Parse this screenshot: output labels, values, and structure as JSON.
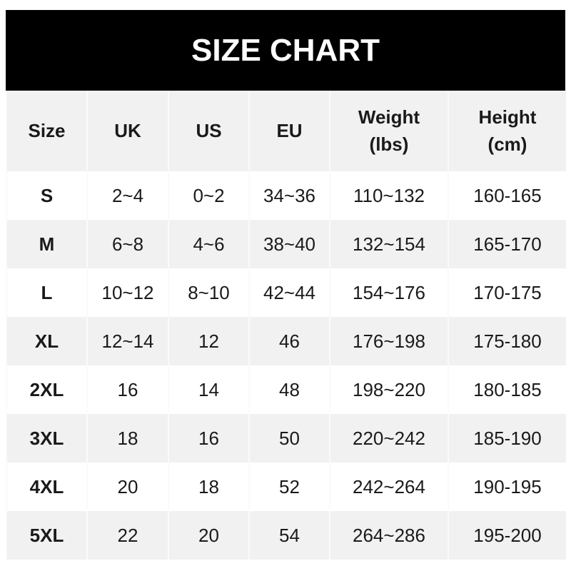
{
  "title": "SIZE CHART",
  "headers": [
    "Size",
    "UK",
    "US",
    "EU",
    "Weight\n(lbs)",
    "Height\n(cm)"
  ],
  "rows": [
    [
      "S",
      "2~4",
      "0~2",
      "34~36",
      "110~132",
      "160-165"
    ],
    [
      "M",
      "6~8",
      "4~6",
      "38~40",
      "132~154",
      "165-170"
    ],
    [
      "L",
      "10~12",
      "8~10",
      "42~44",
      "154~176",
      "170-175"
    ],
    [
      "XL",
      "12~14",
      "12",
      "46",
      "176~198",
      "175-180"
    ],
    [
      "2XL",
      "16",
      "14",
      "48",
      "198~220",
      "180-185"
    ],
    [
      "3XL",
      "18",
      "16",
      "50",
      "220~242",
      "185-190"
    ],
    [
      "4XL",
      "20",
      "18",
      "52",
      "242~264",
      "190-195"
    ],
    [
      "5XL",
      "22",
      "20",
      "54",
      "264~286",
      "195-200"
    ]
  ]
}
